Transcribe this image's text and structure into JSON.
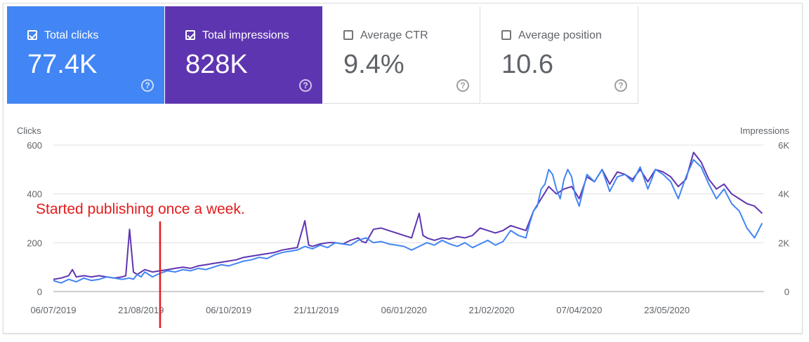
{
  "cards": [
    {
      "label": "Total clicks",
      "value": "77.4K",
      "checked": true,
      "help": "?"
    },
    {
      "label": "Total impressions",
      "value": "828K",
      "checked": true,
      "help": "?"
    },
    {
      "label": "Average CTR",
      "value": "9.4%",
      "checked": false,
      "help": "?"
    },
    {
      "label": "Average position",
      "value": "10.6",
      "checked": false,
      "help": "?"
    }
  ],
  "colors": {
    "clicks": "#4285f4",
    "impressions": "#5e35b1",
    "annotation": "#e31b1b"
  },
  "chart_data": {
    "type": "line",
    "y_left_label": "Clicks",
    "y_right_label": "Impressions",
    "y_left_ticks": [
      "0",
      "200",
      "400",
      "600"
    ],
    "y_right_ticks": [
      "0",
      "2K",
      "4K",
      "6K"
    ],
    "ylim_left": [
      0,
      600
    ],
    "ylim_right": [
      0,
      6000
    ],
    "x_start": "2019-07-06",
    "x_end": "2020-07-13",
    "x_ticks": [
      "06/07/2019",
      "21/08/2019",
      "06/10/2019",
      "21/11/2019",
      "06/01/2020",
      "21/02/2020",
      "07/04/2020",
      "23/05/2020"
    ],
    "annotation": {
      "text": "Started publishing once a week.",
      "date": "2019-08-31"
    },
    "series": [
      {
        "name": "Clicks",
        "axis": "left",
        "values": [
          [
            0,
            45
          ],
          [
            4,
            35
          ],
          [
            8,
            50
          ],
          [
            12,
            40
          ],
          [
            16,
            55
          ],
          [
            20,
            45
          ],
          [
            24,
            50
          ],
          [
            28,
            60
          ],
          [
            32,
            55
          ],
          [
            36,
            50
          ],
          [
            40,
            55
          ],
          [
            42,
            50
          ],
          [
            44,
            70
          ],
          [
            46,
            60
          ],
          [
            48,
            80
          ],
          [
            52,
            60
          ],
          [
            56,
            75
          ],
          [
            60,
            85
          ],
          [
            64,
            80
          ],
          [
            68,
            90
          ],
          [
            72,
            85
          ],
          [
            76,
            95
          ],
          [
            80,
            90
          ],
          [
            84,
            100
          ],
          [
            88,
            110
          ],
          [
            92,
            105
          ],
          [
            96,
            115
          ],
          [
            100,
            125
          ],
          [
            104,
            130
          ],
          [
            108,
            140
          ],
          [
            112,
            135
          ],
          [
            116,
            150
          ],
          [
            120,
            160
          ],
          [
            124,
            165
          ],
          [
            128,
            170
          ],
          [
            132,
            185
          ],
          [
            136,
            175
          ],
          [
            140,
            190
          ],
          [
            144,
            180
          ],
          [
            148,
            200
          ],
          [
            152,
            195
          ],
          [
            156,
            190
          ],
          [
            160,
            210
          ],
          [
            164,
            220
          ],
          [
            168,
            200
          ],
          [
            172,
            205
          ],
          [
            176,
            195
          ],
          [
            180,
            190
          ],
          [
            184,
            185
          ],
          [
            188,
            170
          ],
          [
            192,
            185
          ],
          [
            196,
            200
          ],
          [
            200,
            190
          ],
          [
            204,
            210
          ],
          [
            208,
            195
          ],
          [
            212,
            185
          ],
          [
            216,
            200
          ],
          [
            220,
            180
          ],
          [
            224,
            195
          ],
          [
            228,
            210
          ],
          [
            232,
            190
          ],
          [
            236,
            205
          ],
          [
            240,
            250
          ],
          [
            244,
            230
          ],
          [
            248,
            220
          ],
          [
            250,
            280
          ],
          [
            252,
            330
          ],
          [
            254,
            350
          ],
          [
            256,
            420
          ],
          [
            258,
            440
          ],
          [
            260,
            500
          ],
          [
            262,
            480
          ],
          [
            264,
            420
          ],
          [
            266,
            380
          ],
          [
            268,
            460
          ],
          [
            270,
            500
          ],
          [
            272,
            470
          ],
          [
            274,
            390
          ],
          [
            276,
            350
          ],
          [
            280,
            480
          ],
          [
            284,
            450
          ],
          [
            288,
            500
          ],
          [
            292,
            410
          ],
          [
            296,
            470
          ],
          [
            300,
            480
          ],
          [
            304,
            450
          ],
          [
            308,
            510
          ],
          [
            312,
            420
          ],
          [
            316,
            500
          ],
          [
            320,
            480
          ],
          [
            324,
            450
          ],
          [
            328,
            380
          ],
          [
            332,
            470
          ],
          [
            336,
            540
          ],
          [
            340,
            510
          ],
          [
            344,
            440
          ],
          [
            348,
            380
          ],
          [
            352,
            420
          ],
          [
            356,
            360
          ],
          [
            360,
            330
          ],
          [
            364,
            260
          ],
          [
            368,
            220
          ],
          [
            372,
            280
          ]
        ]
      },
      {
        "name": "Impressions",
        "axis": "right",
        "values": [
          [
            0,
            500
          ],
          [
            4,
            550
          ],
          [
            8,
            650
          ],
          [
            10,
            900
          ],
          [
            12,
            600
          ],
          [
            16,
            650
          ],
          [
            20,
            600
          ],
          [
            24,
            650
          ],
          [
            28,
            600
          ],
          [
            32,
            550
          ],
          [
            36,
            600
          ],
          [
            38,
            650
          ],
          [
            40,
            2550
          ],
          [
            42,
            800
          ],
          [
            44,
            700
          ],
          [
            48,
            900
          ],
          [
            52,
            800
          ],
          [
            56,
            850
          ],
          [
            60,
            900
          ],
          [
            64,
            950
          ],
          [
            68,
            1000
          ],
          [
            72,
            950
          ],
          [
            76,
            1050
          ],
          [
            80,
            1100
          ],
          [
            84,
            1150
          ],
          [
            88,
            1200
          ],
          [
            92,
            1250
          ],
          [
            96,
            1300
          ],
          [
            100,
            1400
          ],
          [
            104,
            1450
          ],
          [
            108,
            1500
          ],
          [
            112,
            1550
          ],
          [
            116,
            1600
          ],
          [
            120,
            1700
          ],
          [
            124,
            1750
          ],
          [
            128,
            1800
          ],
          [
            132,
            2900
          ],
          [
            134,
            1900
          ],
          [
            136,
            1850
          ],
          [
            140,
            1950
          ],
          [
            144,
            2000
          ],
          [
            148,
            2000
          ],
          [
            152,
            1950
          ],
          [
            156,
            2100
          ],
          [
            160,
            2200
          ],
          [
            162,
            2050
          ],
          [
            164,
            2000
          ],
          [
            168,
            2550
          ],
          [
            172,
            2600
          ],
          [
            176,
            2500
          ],
          [
            180,
            2400
          ],
          [
            184,
            2300
          ],
          [
            188,
            2200
          ],
          [
            192,
            3200
          ],
          [
            194,
            2300
          ],
          [
            196,
            2200
          ],
          [
            200,
            2100
          ],
          [
            204,
            2200
          ],
          [
            208,
            2150
          ],
          [
            212,
            2250
          ],
          [
            216,
            2200
          ],
          [
            220,
            2300
          ],
          [
            224,
            2600
          ],
          [
            228,
            2500
          ],
          [
            232,
            2400
          ],
          [
            236,
            2500
          ],
          [
            240,
            2700
          ],
          [
            244,
            2600
          ],
          [
            248,
            2500
          ],
          [
            252,
            3300
          ],
          [
            256,
            3800
          ],
          [
            260,
            4300
          ],
          [
            264,
            4000
          ],
          [
            268,
            4200
          ],
          [
            272,
            4300
          ],
          [
            276,
            3800
          ],
          [
            280,
            4700
          ],
          [
            284,
            4500
          ],
          [
            288,
            5000
          ],
          [
            292,
            4400
          ],
          [
            296,
            4900
          ],
          [
            300,
            4800
          ],
          [
            304,
            4600
          ],
          [
            308,
            5000
          ],
          [
            312,
            4500
          ],
          [
            316,
            5000
          ],
          [
            320,
            4900
          ],
          [
            324,
            4700
          ],
          [
            328,
            4300
          ],
          [
            332,
            4600
          ],
          [
            336,
            5700
          ],
          [
            340,
            5300
          ],
          [
            344,
            4600
          ],
          [
            348,
            4200
          ],
          [
            352,
            4400
          ],
          [
            356,
            4000
          ],
          [
            360,
            3800
          ],
          [
            364,
            3600
          ],
          [
            368,
            3500
          ],
          [
            372,
            3200
          ]
        ]
      }
    ]
  }
}
